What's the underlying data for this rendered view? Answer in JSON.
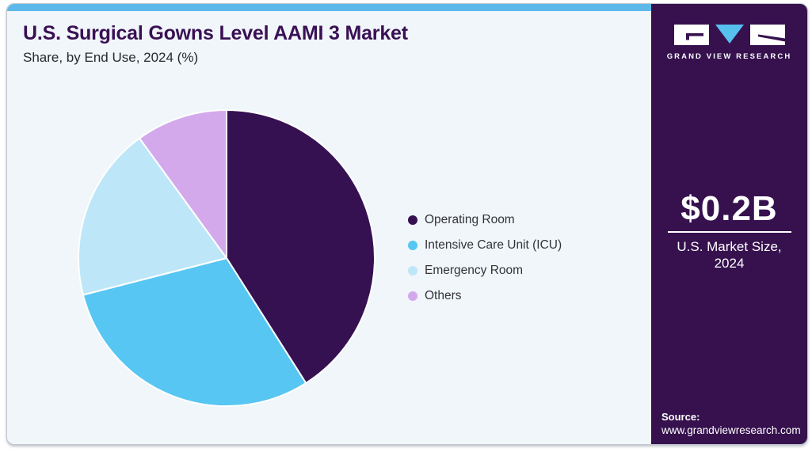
{
  "header": {
    "title": "U.S. Surgical Gowns Level AAMI 3 Market",
    "subtitle": "Share, by End Use, 2024 (%)"
  },
  "chart_data": {
    "type": "pie",
    "title": "U.S. Surgical Gowns Level AAMI 3 Market Share, by End Use, 2024 (%)",
    "unit": "%",
    "start_angle": "12 o'clock",
    "direction": "clockwise",
    "legend_position": "right",
    "slices": [
      {
        "label": "Operating Room",
        "value": 41,
        "color": "#361152"
      },
      {
        "label": "Intensive Care Unit (ICU)",
        "value": 30,
        "color": "#57c6f2"
      },
      {
        "label": "Emergency Room",
        "value": 19,
        "color": "#bde7f8"
      },
      {
        "label": "Others",
        "value": 10,
        "color": "#d3a9ec"
      }
    ]
  },
  "sidebar": {
    "logo_text": "GRAND VIEW RESEARCH",
    "market_size_value": "$0.2B",
    "market_size_label_line1": "U.S. Market Size,",
    "market_size_label_line2": "2024",
    "source_label": "Source:",
    "source_url": "www.grandviewresearch.com"
  },
  "colors": {
    "accent_bar": "#5db9ea",
    "main_bg": "#f0f6fa",
    "sidebar_bg": "#36114e",
    "title_text": "#3a1054",
    "body_text": "#28282d",
    "logo_triangle": "#56c0ee",
    "slice_stroke": "#ffffff"
  }
}
